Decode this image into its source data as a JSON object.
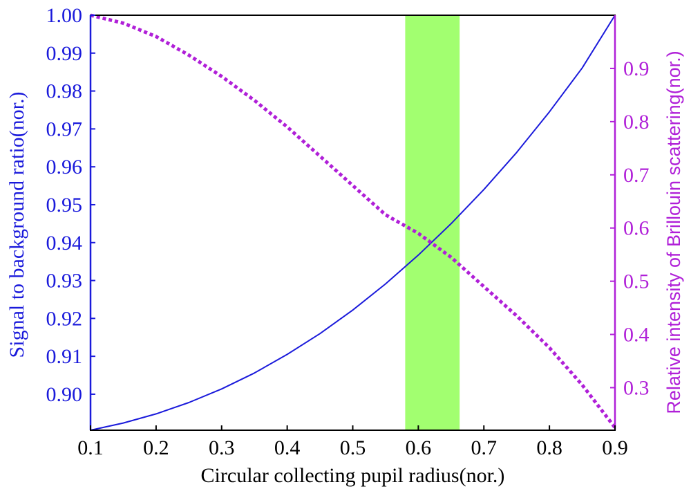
{
  "chart_data": {
    "type": "line",
    "xlabel": "Circular collecting pupil radius(nor.)",
    "ylabel_left": "Signal to background ratio(nor.)",
    "ylabel_right": "Relative intensity of Brillouin scattering(nor.)",
    "xlim": [
      0.1,
      0.9
    ],
    "ylim_left": [
      0.8905,
      1.0
    ],
    "ylim_right": [
      0.22,
      1.0
    ],
    "x_ticks": [
      "0.1",
      "0.2",
      "0.3",
      "0.4",
      "0.5",
      "0.6",
      "0.7",
      "0.8",
      "0.9"
    ],
    "y_ticks_left": [
      "0.90",
      "0.91",
      "0.92",
      "0.93",
      "0.94",
      "0.95",
      "0.96",
      "0.97",
      "0.98",
      "0.99",
      "1.00"
    ],
    "y_ticks_right": [
      "0.3",
      "0.4",
      "0.5",
      "0.6",
      "0.7",
      "0.8",
      "0.9"
    ],
    "highlight_band": {
      "x_start": 0.58,
      "x_end": 0.663,
      "color": "#a2ff70"
    },
    "grid": false,
    "colors": {
      "left_axis": "#1a1adb",
      "right_axis": "#b020d8",
      "frame": "#000000"
    },
    "series": [
      {
        "axis": "left",
        "style": "solid",
        "color": "#1a1adb",
        "x": [
          0.1,
          0.15,
          0.2,
          0.25,
          0.3,
          0.35,
          0.4,
          0.45,
          0.5,
          0.55,
          0.6,
          0.65,
          0.7,
          0.75,
          0.8,
          0.85,
          0.9
        ],
        "values": [
          0.8905,
          0.8924,
          0.8948,
          0.8978,
          0.9014,
          0.9056,
          0.9105,
          0.916,
          0.9222,
          0.9291,
          0.9367,
          0.945,
          0.954,
          0.9638,
          0.9745,
          0.9861,
          1.0
        ]
      },
      {
        "axis": "right",
        "style": "dotted",
        "color": "#b020d8",
        "x": [
          0.1,
          0.15,
          0.2,
          0.25,
          0.3,
          0.35,
          0.4,
          0.45,
          0.5,
          0.55,
          0.6,
          0.65,
          0.7,
          0.75,
          0.8,
          0.85,
          0.9
        ],
        "values": [
          1.0,
          0.985,
          0.96,
          0.925,
          0.885,
          0.84,
          0.79,
          0.735,
          0.68,
          0.625,
          0.59,
          0.545,
          0.49,
          0.435,
          0.375,
          0.305,
          0.225
        ]
      }
    ]
  }
}
